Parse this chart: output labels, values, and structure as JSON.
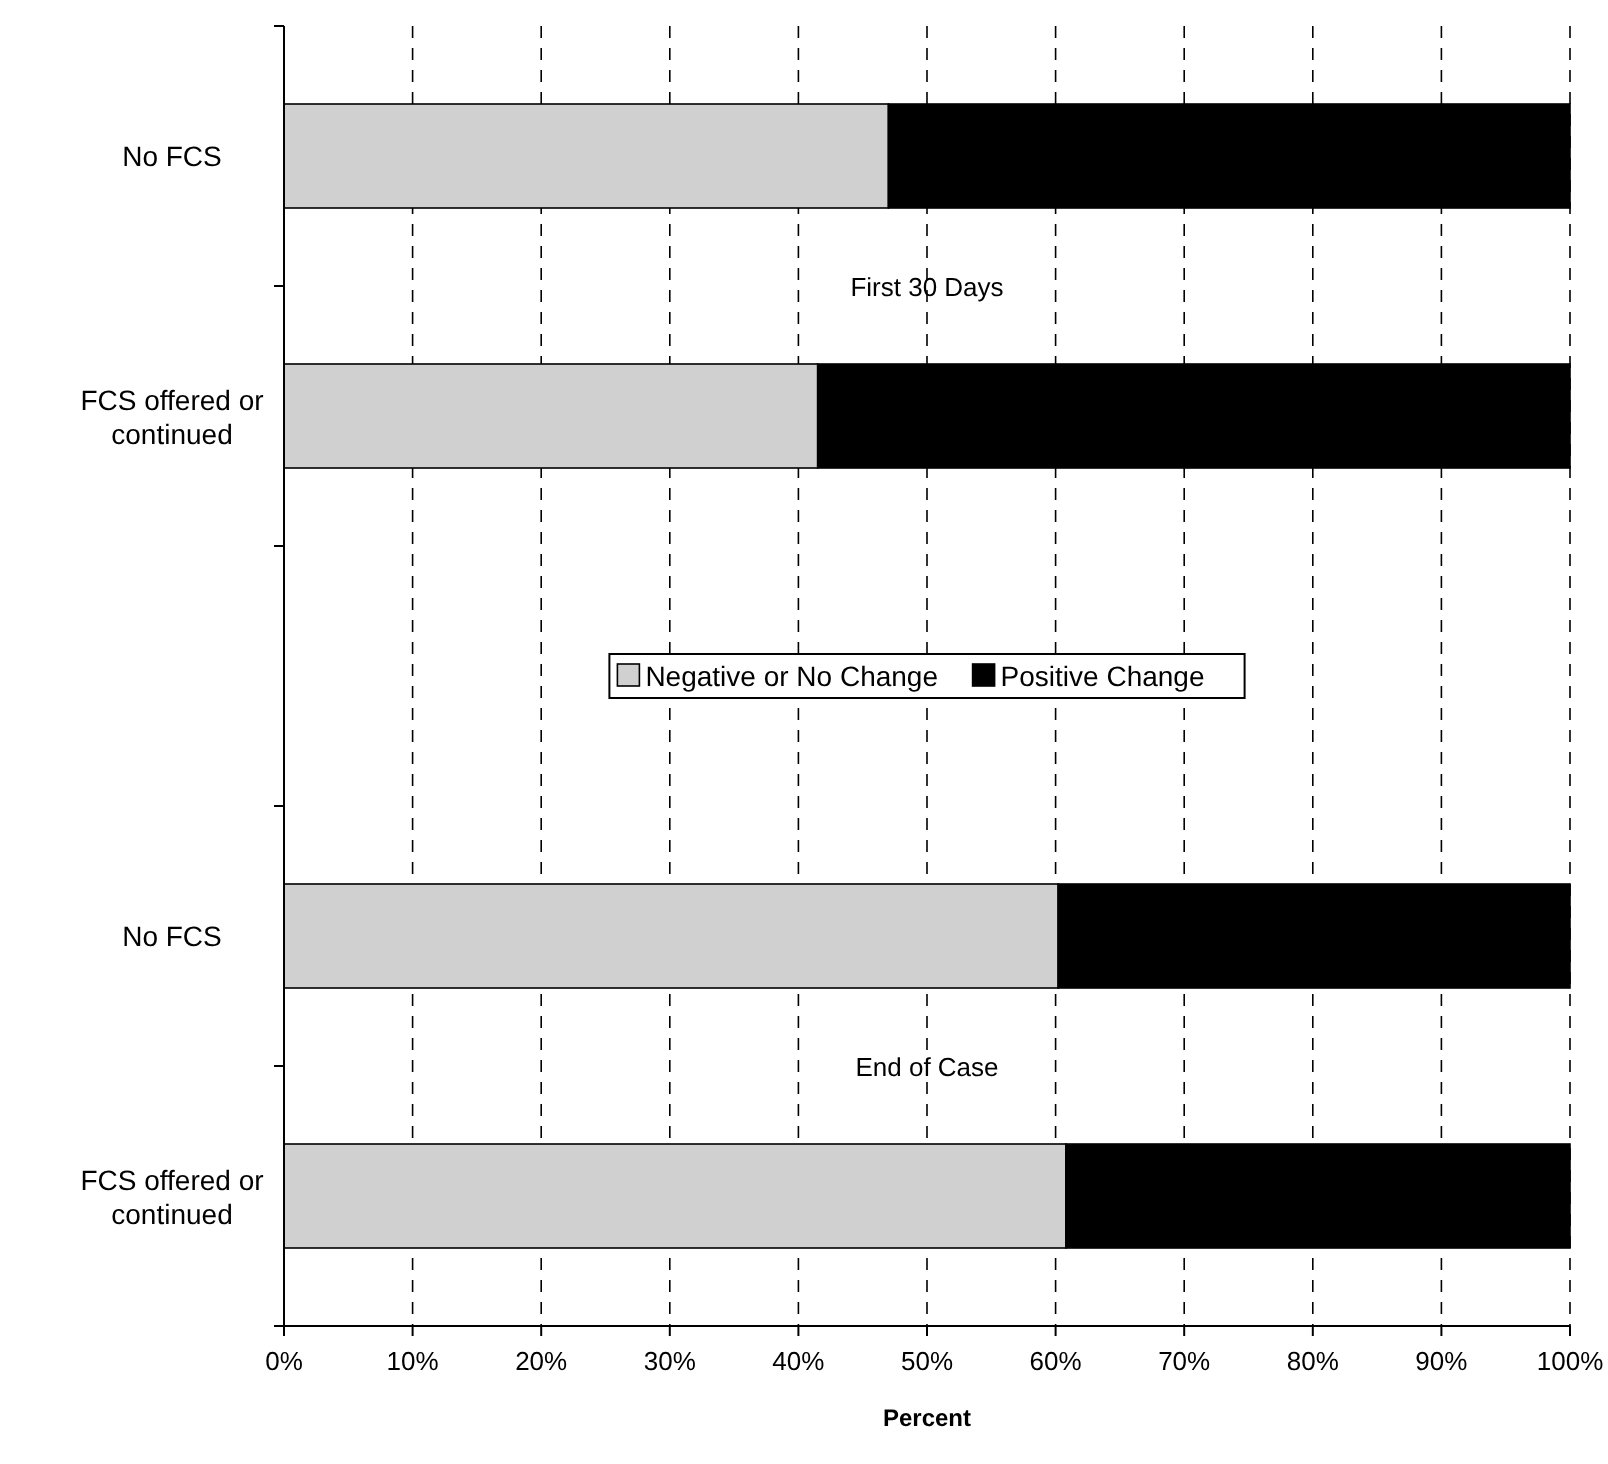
{
  "chart_data": {
    "type": "bar",
    "orientation": "horizontal",
    "stacked": true,
    "xlabel": "Percent",
    "categories": [
      "No FCS",
      "FCS offered or continued",
      null,
      "No FCS",
      "FCS offered or continued"
    ],
    "series": [
      {
        "name": "Negative or No Change",
        "color": "#d0d0d0",
        "values": [
          47,
          41.5,
          null,
          60.2,
          60.8
        ]
      },
      {
        "name": "Positive Change",
        "color": "#000000",
        "values": [
          53,
          58.5,
          null,
          39.8,
          39.2
        ]
      }
    ],
    "xlim": [
      0,
      100
    ],
    "xticks": [
      {
        "value": 0,
        "label": "0%"
      },
      {
        "value": 10,
        "label": "10%"
      },
      {
        "value": 20,
        "label": "20%"
      },
      {
        "value": 30,
        "label": "30%"
      },
      {
        "value": 40,
        "label": "40%"
      },
      {
        "value": 50,
        "label": "50%"
      },
      {
        "value": 60,
        "label": "60%"
      },
      {
        "value": 70,
        "label": "70%"
      },
      {
        "value": 80,
        "label": "80%"
      },
      {
        "value": 90,
        "label": "90%"
      },
      {
        "value": 100,
        "label": "100%"
      }
    ],
    "grid": "x",
    "line_style": "dashed",
    "legend": "center",
    "annotations": [
      "First 30 Days",
      "End of Case"
    ]
  }
}
